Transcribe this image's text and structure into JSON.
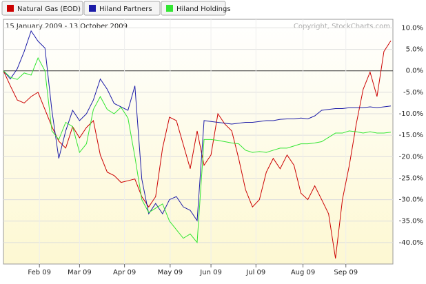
{
  "chart_data": {
    "type": "line",
    "subtitle": "15 January 2009 - 13 October 2009",
    "annotation": "Copyright, StockCharts.com",
    "ylim": [
      -45,
      12
    ],
    "yticks": [
      {
        "value": 10,
        "label": "10.0%"
      },
      {
        "value": 5,
        "label": "5.0%"
      },
      {
        "value": 0,
        "label": "0.0%"
      },
      {
        "value": -5,
        "label": "-5.0%"
      },
      {
        "value": -10,
        "label": "-10.0%"
      },
      {
        "value": -15,
        "label": "-15.0%"
      },
      {
        "value": -20,
        "label": "-20.0%"
      },
      {
        "value": -25,
        "label": "-25.0%"
      },
      {
        "value": -30,
        "label": "-30.0%"
      },
      {
        "value": -35,
        "label": "-35.0%"
      },
      {
        "value": -40,
        "label": "-40.0%"
      }
    ],
    "xlim": [
      0,
      56.3
    ],
    "xticks": [
      {
        "value": 5.2,
        "label": "Feb 09"
      },
      {
        "value": 11,
        "label": "Mar 09"
      },
      {
        "value": 17.5,
        "label": "Apr 09"
      },
      {
        "value": 24.1,
        "label": "May 09"
      },
      {
        "value": 30,
        "label": "Jun 09"
      },
      {
        "value": 36.5,
        "label": "Jul 09"
      },
      {
        "value": 43.3,
        "label": "Aug 09"
      },
      {
        "value": 49.5,
        "label": "Sep 09"
      }
    ],
    "grid": true,
    "series": [
      {
        "name": "Natural Gas (EOD)",
        "color": "#cc0000",
        "values": [
          0,
          -3.5,
          -6.8,
          -7.5,
          -6,
          -5,
          -9,
          -13,
          -16.4,
          -18,
          -13,
          -15.6,
          -13.2,
          -11.6,
          -19.6,
          -23.6,
          -24.4,
          -26,
          -25.6,
          -25.2,
          -29.3,
          -31.7,
          -29.3,
          -18,
          -10.8,
          -11.6,
          -17.2,
          -22.8,
          -14,
          -22,
          -19.6,
          -10,
          -12.4,
          -14,
          -20.4,
          -27.7,
          -31.7,
          -30,
          -23.6,
          -20.4,
          -22.8,
          -19.6,
          -22,
          -28.5,
          -30,
          -26.8,
          -30,
          -33.3,
          -43.7,
          -30,
          -22,
          -12.4,
          -4.3,
          -0.3,
          -6,
          4.5,
          7
        ]
      },
      {
        "name": "Hiland Partners",
        "color": "#1c1ca8",
        "values": [
          0,
          -1.9,
          0.5,
          4.5,
          9.3,
          6.9,
          5.3,
          -9.2,
          -20.4,
          -14,
          -9.2,
          -11.6,
          -10,
          -6.8,
          -1.9,
          -4.3,
          -7.6,
          -8.4,
          -9.2,
          -3.5,
          -25.2,
          -33.3,
          -30.9,
          -33.3,
          -30,
          -29.3,
          -31.7,
          -32.5,
          -34.9,
          -11.6,
          -11.8,
          -12,
          -12.2,
          -12.4,
          -12.2,
          -12,
          -12,
          -11.8,
          -11.6,
          -11.6,
          -11.3,
          -11.2,
          -11.2,
          -11,
          -11.2,
          -10.5,
          -9.2,
          -9,
          -8.8,
          -8.8,
          -8.6,
          -8.6,
          -8.6,
          -8.4,
          -8.6,
          -8.4,
          -8.2
        ]
      },
      {
        "name": "Hiland Holdings",
        "color": "#33e633",
        "values": [
          0,
          -1.5,
          -2,
          -0.5,
          -1,
          3,
          0,
          -14,
          -16,
          -12,
          -13,
          -19,
          -17,
          -9,
          -6,
          -9,
          -10,
          -8.5,
          -11,
          -20,
          -30,
          -33,
          -32,
          -31,
          -35,
          -37,
          -39,
          -38,
          -40,
          -16,
          -16,
          -16.2,
          -16.5,
          -16.8,
          -17,
          -18.5,
          -19,
          -18.8,
          -19,
          -18.5,
          -18,
          -18,
          -17.5,
          -17,
          -17,
          -16.8,
          -16.5,
          -15.5,
          -14.5,
          -14.5,
          -14,
          -14.2,
          -14.5,
          -14.2,
          -14.5,
          -14.5,
          -14.3
        ]
      }
    ]
  }
}
